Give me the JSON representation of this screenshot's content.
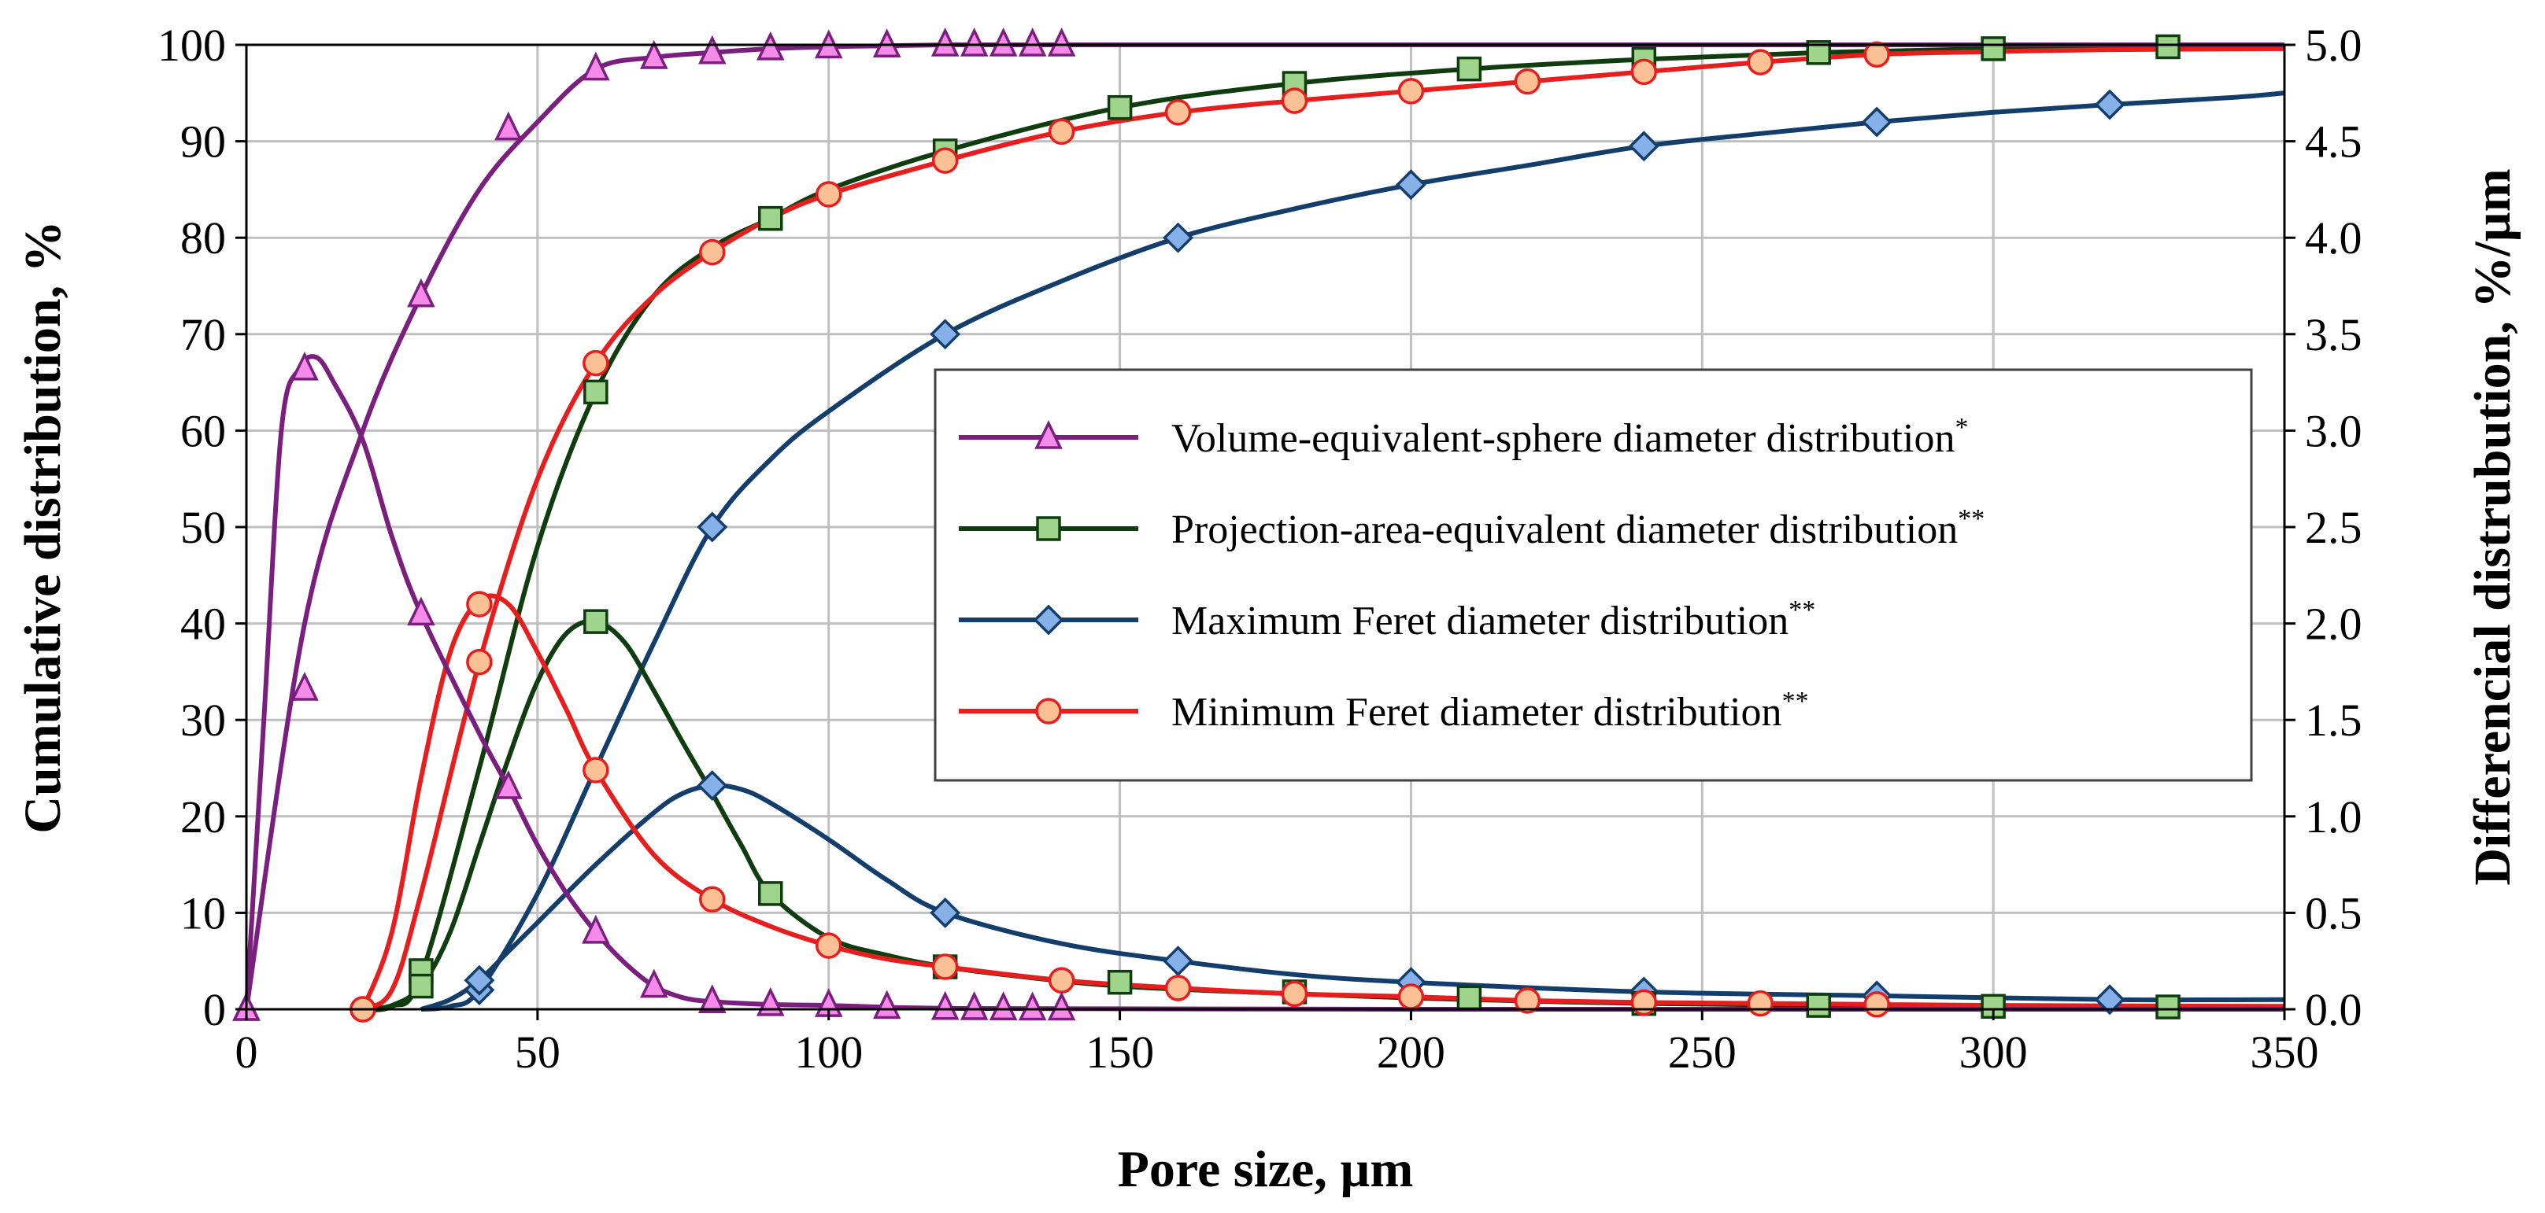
{
  "chart_data": {
    "type": "line",
    "title": "",
    "xlabel": "Pore size, µm",
    "ylabel": "Cumulative distribution, %",
    "y2label": "Differencial distrubution, %/µm",
    "xlim": [
      0,
      350
    ],
    "ylim": [
      0,
      100
    ],
    "y2lim": [
      0,
      5.0
    ],
    "grid": true,
    "legend_position": "right-center",
    "x_ticks": [
      "0",
      "50",
      "100",
      "150",
      "200",
      "250",
      "300",
      "350"
    ],
    "y_ticks": [
      "0",
      "10",
      "20",
      "30",
      "40",
      "50",
      "60",
      "70",
      "80",
      "90",
      "100"
    ],
    "y2_ticks": [
      "0.0",
      "0.5",
      "1.0",
      "1.5",
      "2.0",
      "2.5",
      "3.0",
      "3.5",
      "4.0",
      "4.5",
      "5.0"
    ],
    "series": [
      {
        "name": "Volume-equivalent-sphere diameter distribution",
        "sup": "*",
        "color": "#7b1f7f",
        "marker": "triangle",
        "marker_fill": "#f58ae8",
        "cumulative": {
          "x": [
            0,
            10,
            20,
            30,
            40,
            50,
            60,
            70,
            80,
            90,
            100,
            110,
            120,
            125,
            130,
            135,
            140,
            160,
            200,
            250,
            300,
            350
          ],
          "y": [
            0,
            40,
            60,
            74,
            85,
            92,
            97.5,
            98.7,
            99.2,
            99.6,
            99.8,
            99.9,
            100,
            100,
            100,
            100,
            100,
            100,
            100,
            100,
            100,
            100
          ],
          "marker_x": [
            0,
            10,
            30,
            45,
            60,
            70,
            80,
            90,
            100,
            110,
            120,
            125,
            130,
            135,
            140
          ],
          "marker_y": [
            0,
            33.2,
            74,
            91.3,
            97.5,
            98.7,
            99.2,
            99.6,
            99.8,
            99.9,
            100,
            100,
            100,
            100,
            100
          ]
        },
        "differential": {
          "x": [
            0,
            3,
            6,
            9,
            12,
            15,
            20,
            25,
            30,
            40,
            45,
            50,
            55,
            60,
            65,
            70,
            75,
            80,
            90,
            100,
            110,
            120,
            140,
            200,
            350
          ],
          "y": [
            0,
            1.5,
            3.0,
            3.32,
            3.38,
            3.25,
            2.95,
            2.45,
            2.05,
            1.43,
            1.15,
            0.85,
            0.6,
            0.4,
            0.24,
            0.12,
            0.06,
            0.04,
            0.025,
            0.02,
            0.01,
            0.005,
            0.003,
            0,
            0
          ],
          "marker_x": [
            0,
            10,
            30,
            45,
            60,
            70,
            80,
            90,
            100,
            110,
            120,
            125,
            130,
            135,
            140
          ],
          "marker_y": [
            0,
            3.32,
            2.05,
            1.15,
            0.4,
            0.12,
            0.04,
            0.025,
            0.02,
            0.01,
            0.005,
            0.004,
            0.003,
            0.002,
            0.002
          ]
        }
      },
      {
        "name": "Projection-area-equivalent diameter distribution",
        "sup": "**",
        "color": "#0f3d0f",
        "marker": "square",
        "marker_fill": "#9ed48c",
        "cumulative": {
          "x": [
            20,
            25,
            30,
            40,
            50,
            60,
            70,
            80,
            90,
            100,
            120,
            150,
            180,
            210,
            240,
            270,
            300,
            330,
            350
          ],
          "y": [
            0,
            0.3,
            3.5,
            25,
            48,
            64,
            74,
            79,
            82,
            85,
            89,
            93.5,
            96,
            97.5,
            98.5,
            99.2,
            99.6,
            99.8,
            99.9
          ],
          "marker_x": [
            30,
            60,
            90,
            120,
            150,
            180,
            210,
            240,
            270,
            300,
            330
          ],
          "marker_y": [
            4,
            64,
            82,
            89,
            93.5,
            96,
            97.5,
            98.5,
            99.2,
            99.6,
            99.8
          ]
        },
        "differential": {
          "x": [
            20,
            25,
            30,
            35,
            40,
            45,
            50,
            55,
            60,
            65,
            70,
            75,
            80,
            85,
            90,
            100,
            110,
            120,
            130,
            150,
            180,
            210,
            240,
            270,
            300,
            330,
            350
          ],
          "y": [
            0,
            0.02,
            0.12,
            0.4,
            0.85,
            1.3,
            1.7,
            1.95,
            2.01,
            1.9,
            1.65,
            1.38,
            1.12,
            0.85,
            0.6,
            0.37,
            0.28,
            0.22,
            0.18,
            0.12,
            0.08,
            0.05,
            0.03,
            0.02,
            0.015,
            0.012,
            0.01
          ],
          "marker_x": [
            30,
            60,
            90,
            120,
            150,
            180,
            210,
            240,
            270,
            300,
            330
          ],
          "marker_y": [
            0.12,
            2.01,
            0.6,
            0.22,
            0.14,
            0.09,
            0.06,
            0.03,
            0.02,
            0.015,
            0.012
          ]
        }
      },
      {
        "name": "Maximum Feret diameter distribution",
        "sup": "**",
        "color": "#133d6b",
        "marker": "diamond",
        "marker_fill": "#86b0e8",
        "cumulative": {
          "x": [
            30,
            35,
            40,
            50,
            60,
            70,
            80,
            90,
            100,
            120,
            140,
            160,
            180,
            200,
            220,
            240,
            260,
            280,
            300,
            320,
            340,
            350
          ],
          "y": [
            0,
            0.3,
            2,
            12,
            25,
            38,
            50,
            57,
            62,
            70,
            75.5,
            80,
            83,
            85.5,
            87.5,
            89.5,
            90.8,
            92,
            93,
            93.8,
            94.5,
            95
          ],
          "marker_x": [
            40,
            80,
            120,
            160,
            200,
            240,
            280,
            320
          ],
          "marker_y": [
            2,
            50,
            70,
            80,
            85.5,
            89.5,
            92,
            93.8
          ]
        },
        "differential": {
          "x": [
            30,
            35,
            40,
            45,
            50,
            60,
            70,
            75,
            80,
            85,
            90,
            100,
            110,
            120,
            140,
            160,
            180,
            200,
            240,
            280,
            320,
            350
          ],
          "y": [
            0,
            0.05,
            0.15,
            0.3,
            0.45,
            0.75,
            1.02,
            1.12,
            1.16,
            1.14,
            1.07,
            0.88,
            0.67,
            0.5,
            0.34,
            0.25,
            0.18,
            0.14,
            0.09,
            0.07,
            0.05,
            0.05
          ],
          "marker_x": [
            40,
            80,
            120,
            160,
            200,
            240,
            280,
            320
          ],
          "marker_y": [
            0.15,
            1.16,
            0.5,
            0.25,
            0.14,
            0.09,
            0.07,
            0.05
          ]
        }
      },
      {
        "name": "Minimum Feret diameter distribution",
        "sup": "**",
        "color": "#e61e1e",
        "marker": "circle",
        "marker_fill": "#fbc094",
        "cumulative": {
          "x": [
            20,
            25,
            30,
            40,
            50,
            60,
            70,
            80,
            90,
            100,
            120,
            140,
            160,
            180,
            200,
            220,
            240,
            260,
            280,
            300,
            320,
            350
          ],
          "y": [
            0,
            2,
            12,
            36,
            55,
            67,
            74,
            78.5,
            82,
            84.5,
            88,
            91,
            93,
            94.2,
            95.2,
            96.2,
            97.2,
            98.2,
            99,
            99.3,
            99.5,
            99.6
          ],
          "marker_x": [
            20,
            40,
            60,
            80,
            100,
            120,
            140,
            160,
            180,
            200,
            220,
            240,
            260,
            280
          ],
          "marker_y": [
            0,
            36,
            67,
            78.5,
            84.5,
            88,
            91,
            93,
            94.2,
            95.2,
            96.2,
            97.2,
            98.2,
            99
          ]
        },
        "differential": {
          "x": [
            20,
            25,
            30,
            35,
            40,
            45,
            50,
            55,
            60,
            70,
            80,
            90,
            100,
            110,
            120,
            140,
            160,
            180,
            200,
            220,
            240,
            260,
            280,
            300,
            350
          ],
          "y": [
            0,
            0.4,
            1.2,
            1.85,
            2.12,
            2.1,
            1.85,
            1.55,
            1.24,
            0.8,
            0.57,
            0.43,
            0.33,
            0.26,
            0.22,
            0.15,
            0.11,
            0.08,
            0.065,
            0.045,
            0.035,
            0.03,
            0.025,
            0.02,
            0.015
          ],
          "marker_x": [
            20,
            40,
            60,
            80,
            100,
            120,
            140,
            160,
            180,
            200,
            220,
            240,
            260,
            280
          ],
          "marker_y": [
            0,
            2.1,
            1.24,
            0.57,
            0.33,
            0.22,
            0.15,
            0.11,
            0.08,
            0.065,
            0.045,
            0.035,
            0.03,
            0.025
          ]
        }
      }
    ]
  }
}
